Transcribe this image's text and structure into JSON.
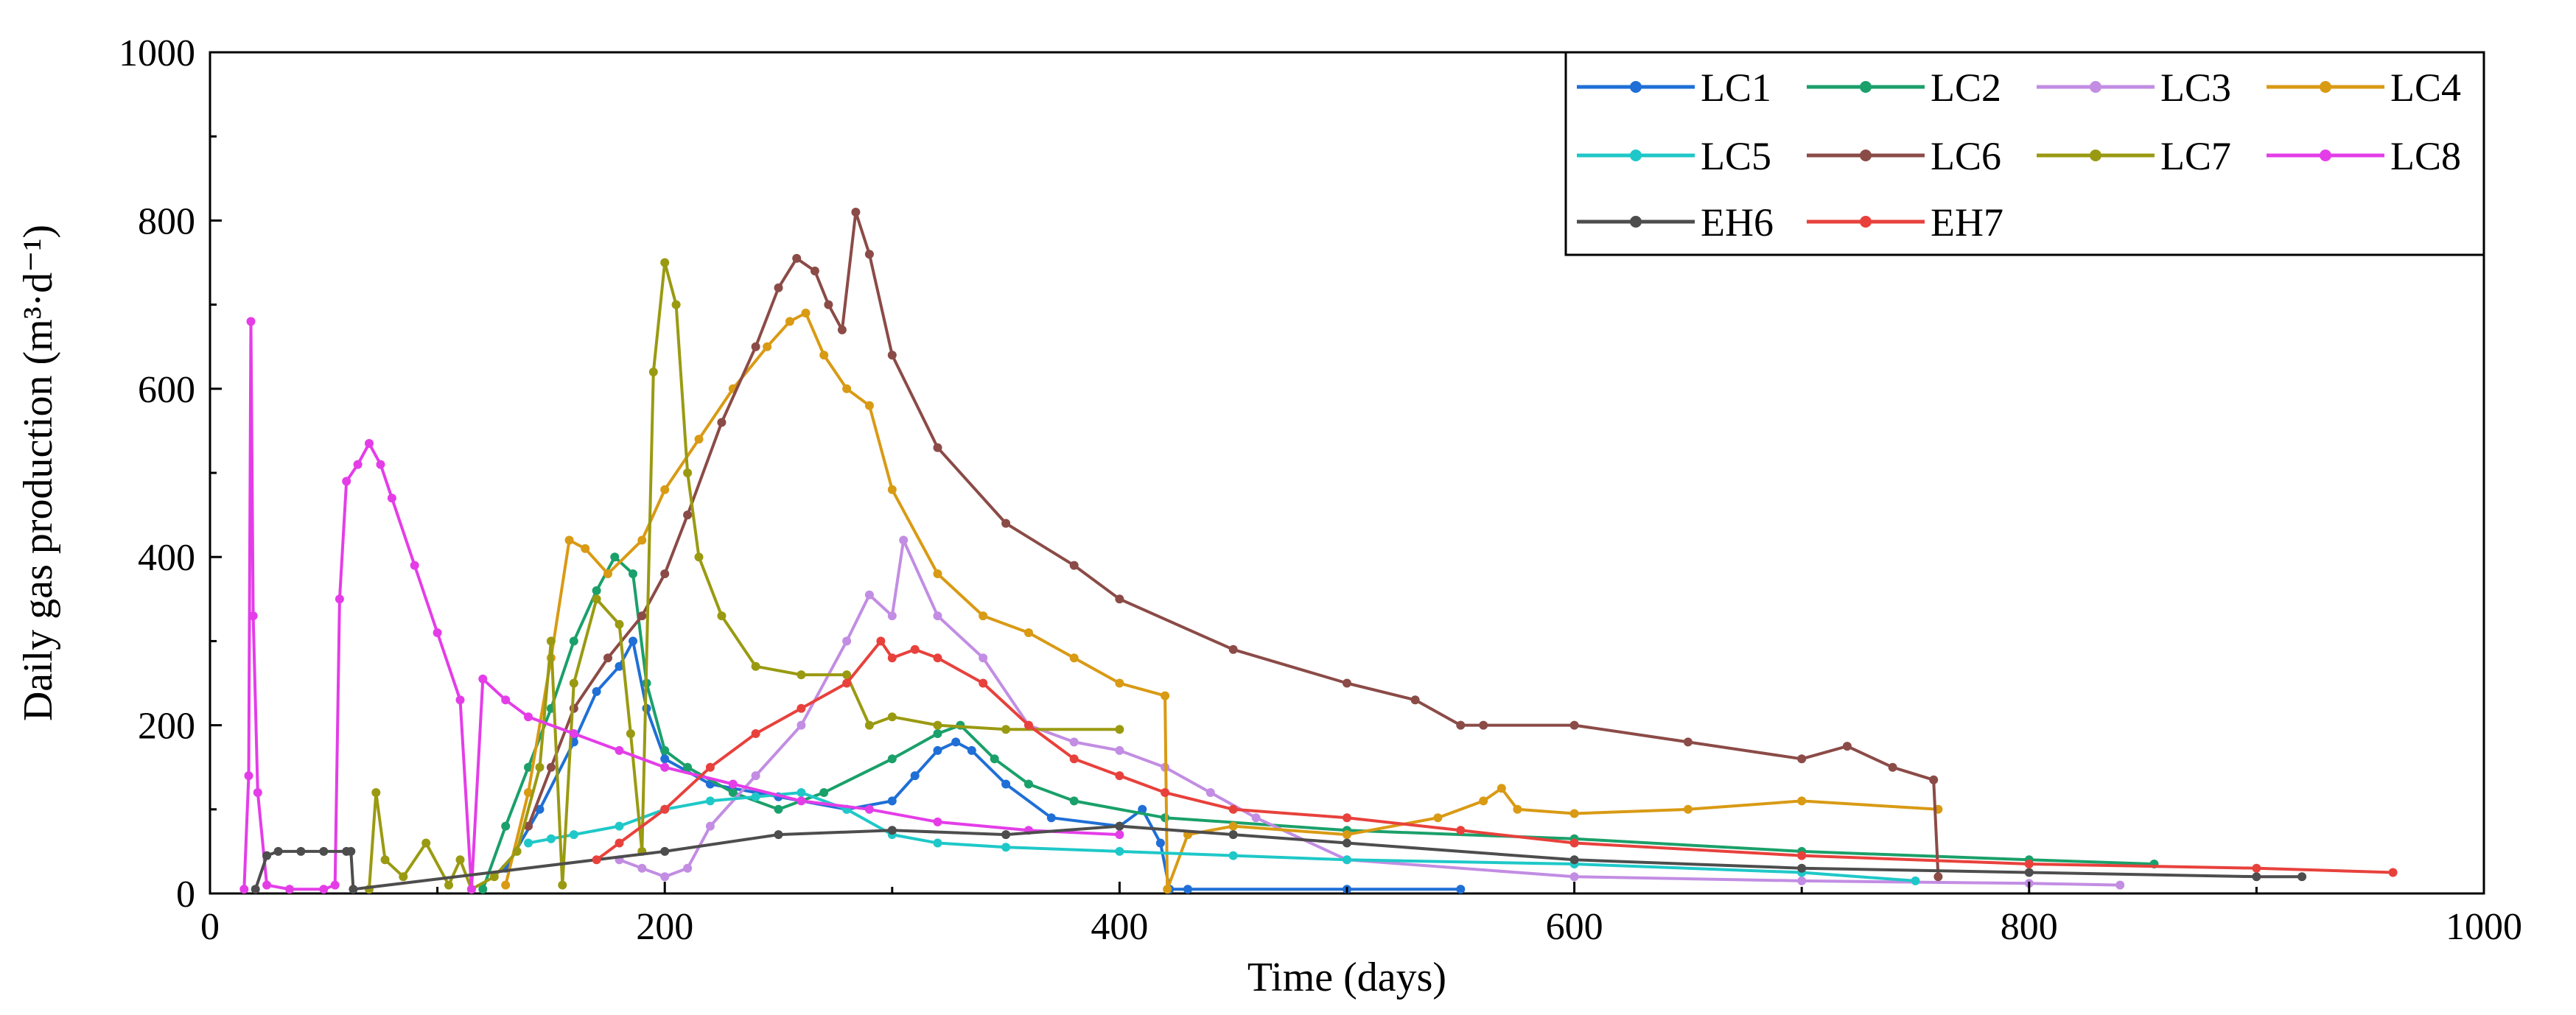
{
  "chart_data": {
    "type": "line",
    "title": "",
    "xlabel": "Time (days)",
    "ylabel": "Daily gas production (m³·d⁻¹)",
    "xlim": [
      0,
      1000
    ],
    "ylim": [
      0,
      1000
    ],
    "xticks": [
      "0",
      "200",
      "400",
      "600",
      "800",
      "1000"
    ],
    "yticks": [
      "0",
      "200",
      "400",
      "600",
      "800",
      "1000"
    ],
    "legend_position": "top-right",
    "series": [
      {
        "name": "LC1",
        "color": "#1f6fd6",
        "x": [
          130,
          145,
          160,
          170,
          180,
          186,
          192,
          200,
          220,
          250,
          280,
          300,
          310,
          320,
          328,
          335,
          350,
          370,
          400,
          410,
          418,
          422,
          430,
          500,
          550
        ],
        "y": [
          30,
          100,
          180,
          240,
          270,
          300,
          220,
          160,
          130,
          115,
          100,
          110,
          140,
          170,
          180,
          170,
          130,
          90,
          80,
          100,
          60,
          5,
          5,
          5,
          5
        ]
      },
      {
        "name": "LC2",
        "color": "#1aa06a",
        "x": [
          120,
          130,
          140,
          150,
          160,
          170,
          178,
          186,
          192,
          200,
          210,
          230,
          250,
          270,
          300,
          320,
          330,
          345,
          360,
          380,
          420,
          500,
          600,
          700,
          800,
          855
        ],
        "y": [
          5,
          80,
          150,
          220,
          300,
          360,
          400,
          380,
          250,
          170,
          150,
          120,
          100,
          120,
          160,
          190,
          200,
          160,
          130,
          110,
          90,
          75,
          65,
          50,
          40,
          35
        ]
      },
      {
        "name": "LC3",
        "color": "#c28de3",
        "x": [
          180,
          190,
          200,
          210,
          220,
          240,
          260,
          280,
          290,
          300,
          305,
          320,
          340,
          360,
          380,
          400,
          420,
          440,
          460,
          500,
          600,
          700,
          800,
          840
        ],
        "y": [
          40,
          30,
          20,
          30,
          80,
          140,
          200,
          300,
          355,
          330,
          420,
          330,
          280,
          200,
          180,
          170,
          150,
          120,
          90,
          40,
          20,
          15,
          12,
          10
        ]
      },
      {
        "name": "LC4",
        "color": "#d99a14",
        "x": [
          130,
          140,
          150,
          158,
          165,
          175,
          190,
          200,
          215,
          230,
          245,
          255,
          262,
          270,
          280,
          290,
          300,
          320,
          340,
          360,
          380,
          400,
          420,
          421,
          430,
          450,
          500,
          540,
          560,
          568,
          575,
          600,
          650,
          700,
          760
        ],
        "y": [
          10,
          120,
          280,
          420,
          410,
          380,
          420,
          480,
          540,
          600,
          650,
          680,
          690,
          640,
          600,
          580,
          480,
          380,
          330,
          310,
          280,
          250,
          235,
          5,
          70,
          80,
          70,
          90,
          110,
          125,
          100,
          95,
          100,
          110,
          100
        ]
      },
      {
        "name": "LC5",
        "color": "#1fc8c8",
        "x": [
          140,
          150,
          160,
          180,
          200,
          220,
          240,
          260,
          280,
          300,
          320,
          350,
          400,
          450,
          500,
          600,
          700,
          750
        ],
        "y": [
          60,
          65,
          70,
          80,
          100,
          110,
          115,
          120,
          100,
          70,
          60,
          55,
          50,
          45,
          40,
          35,
          25,
          15
        ]
      },
      {
        "name": "LC6",
        "color": "#8b4b47",
        "x": [
          140,
          150,
          160,
          175,
          190,
          200,
          210,
          225,
          240,
          250,
          258,
          266,
          272,
          278,
          284,
          290,
          300,
          320,
          350,
          380,
          400,
          450,
          500,
          530,
          550,
          560,
          600,
          650,
          700,
          720,
          740,
          758,
          760
        ],
        "y": [
          80,
          150,
          220,
          280,
          330,
          380,
          450,
          560,
          650,
          720,
          755,
          740,
          700,
          670,
          810,
          760,
          640,
          530,
          440,
          390,
          350,
          290,
          250,
          230,
          200,
          200,
          200,
          180,
          160,
          175,
          150,
          135,
          20
        ]
      },
      {
        "name": "LC7",
        "color": "#9a9a12",
        "x": [
          70,
          73,
          77,
          85,
          95,
          105,
          110,
          115,
          125,
          135,
          145,
          150,
          155,
          160,
          170,
          180,
          185,
          190,
          195,
          200,
          205,
          210,
          215,
          225,
          240,
          260,
          280,
          290,
          300,
          320,
          350,
          400
        ],
        "y": [
          5,
          120,
          40,
          20,
          60,
          10,
          40,
          5,
          20,
          50,
          150,
          300,
          10,
          250,
          350,
          320,
          190,
          50,
          620,
          750,
          700,
          500,
          400,
          330,
          270,
          260,
          260,
          200,
          210,
          200,
          195,
          195
        ]
      },
      {
        "name": "LC8",
        "color": "#e43de8",
        "x": [
          15,
          17,
          18,
          19,
          21,
          25,
          35,
          50,
          55,
          57,
          60,
          65,
          70,
          75,
          80,
          90,
          100,
          110,
          115,
          120,
          130,
          140,
          160,
          180,
          200,
          230,
          260,
          290,
          320,
          360,
          400
        ],
        "y": [
          5,
          140,
          680,
          330,
          120,
          10,
          5,
          5,
          10,
          350,
          490,
          510,
          535,
          510,
          470,
          390,
          310,
          230,
          5,
          255,
          230,
          210,
          190,
          170,
          150,
          130,
          110,
          100,
          85,
          75,
          70
        ]
      },
      {
        "name": "EH6",
        "color": "#4d4d4d",
        "x": [
          20,
          25,
          30,
          40,
          50,
          60,
          62,
          63,
          200,
          250,
          300,
          350,
          400,
          450,
          500,
          600,
          700,
          800,
          900,
          920
        ],
        "y": [
          5,
          45,
          50,
          50,
          50,
          50,
          50,
          5,
          50,
          70,
          75,
          70,
          80,
          70,
          60,
          40,
          30,
          25,
          20,
          20
        ]
      },
      {
        "name": "EH7",
        "color": "#e8413c",
        "x": [
          170,
          180,
          200,
          220,
          240,
          260,
          280,
          295,
          300,
          310,
          320,
          340,
          360,
          380,
          400,
          420,
          450,
          500,
          550,
          600,
          700,
          800,
          900,
          960
        ],
        "y": [
          40,
          60,
          100,
          150,
          190,
          220,
          250,
          300,
          280,
          290,
          280,
          250,
          200,
          160,
          140,
          120,
          100,
          90,
          75,
          60,
          45,
          35,
          30,
          25
        ]
      }
    ]
  }
}
